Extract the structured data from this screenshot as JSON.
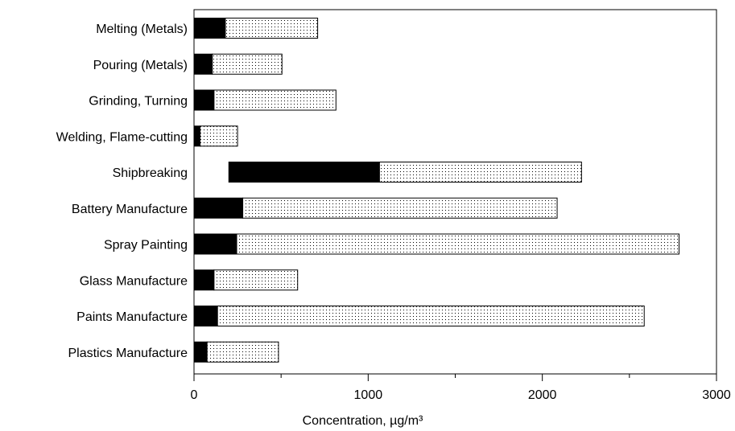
{
  "chart_data": {
    "type": "bar",
    "orientation": "horizontal",
    "stacked": true,
    "title": "",
    "xlabel": "Concentration, µg/m³",
    "ylabel": "",
    "xlim": [
      0,
      3000
    ],
    "x_ticks": [
      "0",
      "1000",
      "2000",
      "3000"
    ],
    "grid": false,
    "legend": "none",
    "categories": [
      "Melting (Metals)",
      "Pouring (Metals)",
      "Grinding, Turning",
      "Welding, Flame-cutting",
      "Shipbreaking",
      "Battery Manufacture",
      "Spray Painting",
      "Glass Manufacture",
      "Paints Manufacture",
      "Plastics Manufacture"
    ],
    "series": [
      {
        "fill": "solid",
        "color": "#000000",
        "start": [
          0,
          0,
          0,
          0,
          200,
          0,
          0,
          0,
          0,
          0
        ],
        "end": [
          180,
          105,
          115,
          35,
          1065,
          280,
          245,
          115,
          135,
          75
        ]
      },
      {
        "fill": "dotted",
        "color": "#000000",
        "start": [
          180,
          105,
          115,
          35,
          1065,
          280,
          245,
          115,
          135,
          75
        ],
        "end": [
          710,
          505,
          815,
          250,
          2225,
          2085,
          2785,
          595,
          2585,
          485
        ]
      }
    ]
  }
}
